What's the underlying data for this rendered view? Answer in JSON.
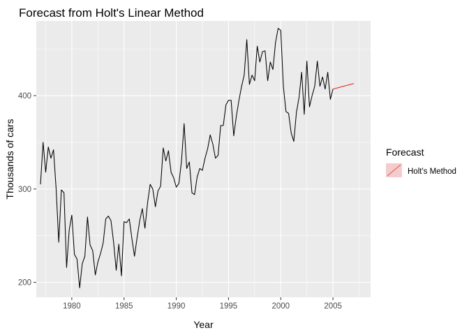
{
  "chart_data": {
    "type": "line",
    "title": "Forecast from Holt's Linear Method",
    "xlabel": "Year",
    "ylabel": "Thousands of cars",
    "xlim": [
      1976.6,
      2008.6
    ],
    "ylim": [
      184,
      480
    ],
    "x_ticks": [
      1980,
      1985,
      1990,
      1995,
      2000,
      2005
    ],
    "y_ticks": [
      200,
      300,
      400
    ],
    "grid": true,
    "background": "#ebebeb",
    "grid_color": "#ffffff",
    "series": [
      {
        "color": "#000000",
        "start": 1977.0,
        "step": 0.25,
        "values": [
          305,
          350,
          318,
          345,
          333,
          342,
          300,
          243,
          299,
          296,
          216,
          256,
          272,
          230,
          225,
          194,
          220,
          228,
          270,
          240,
          234,
          208,
          222,
          231,
          242,
          268,
          271,
          266,
          243,
          213,
          241,
          207,
          265,
          264,
          268,
          247,
          228,
          248,
          266,
          279,
          258,
          285,
          305,
          300,
          281,
          298,
          303,
          344,
          330,
          341,
          318,
          312,
          302,
          306,
          330,
          370,
          322,
          329,
          296,
          294,
          313,
          322,
          320,
          333,
          343,
          358,
          348,
          333,
          336,
          368,
          368,
          390,
          395,
          395,
          357,
          378,
          395,
          410,
          422,
          460,
          412,
          422,
          416,
          453,
          436,
          447,
          448,
          416,
          436,
          428,
          457,
          472,
          470,
          410,
          383,
          381,
          360,
          351,
          382,
          398,
          425,
          380,
          437,
          388,
          400,
          410,
          437,
          410,
          420,
          407,
          425,
          396,
          407
        ]
      },
      {
        "name": "Holt's Method",
        "color": "#e8231e",
        "x": [
          2005.0,
          2007.0
        ],
        "values": [
          407,
          413
        ]
      }
    ],
    "legend": {
      "title": "Forecast",
      "position": "right",
      "entries": [
        {
          "label": "Holt's Method",
          "fill": "#f4cccc",
          "line": "#e8231e"
        }
      ]
    }
  }
}
